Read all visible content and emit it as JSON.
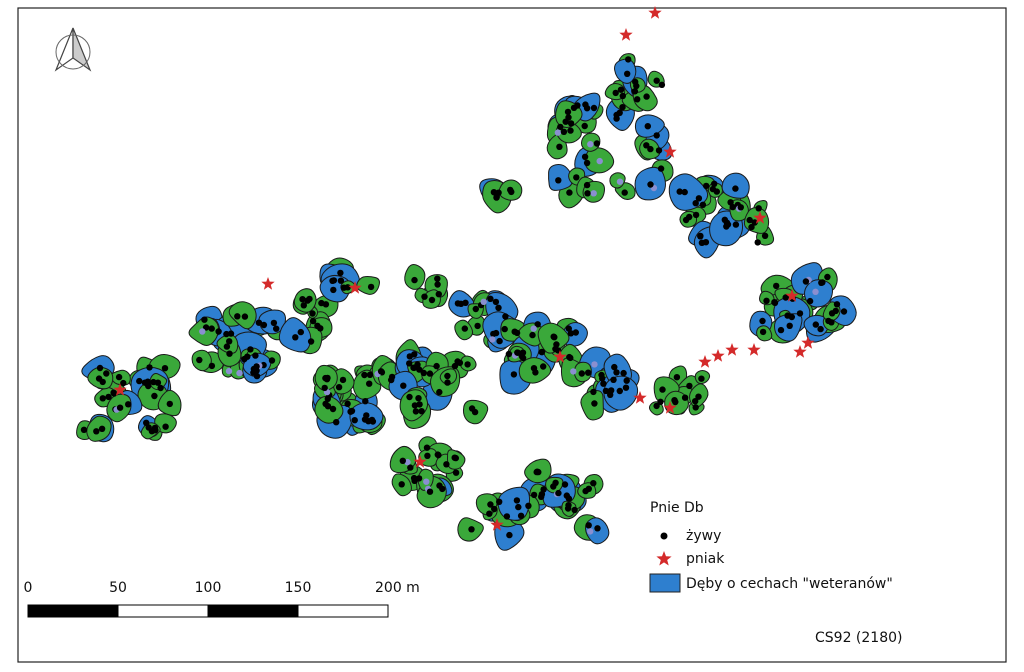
{
  "legend": {
    "title": "Pnie Db",
    "items": [
      "żywy",
      "pniak",
      "Dęby o cechach \"weteranów\""
    ]
  },
  "scale_bar": {
    "labels": [
      "0",
      "50",
      "100",
      "150",
      "200 m"
    ]
  },
  "footer": {
    "label": "CS92 (2180)"
  }
}
